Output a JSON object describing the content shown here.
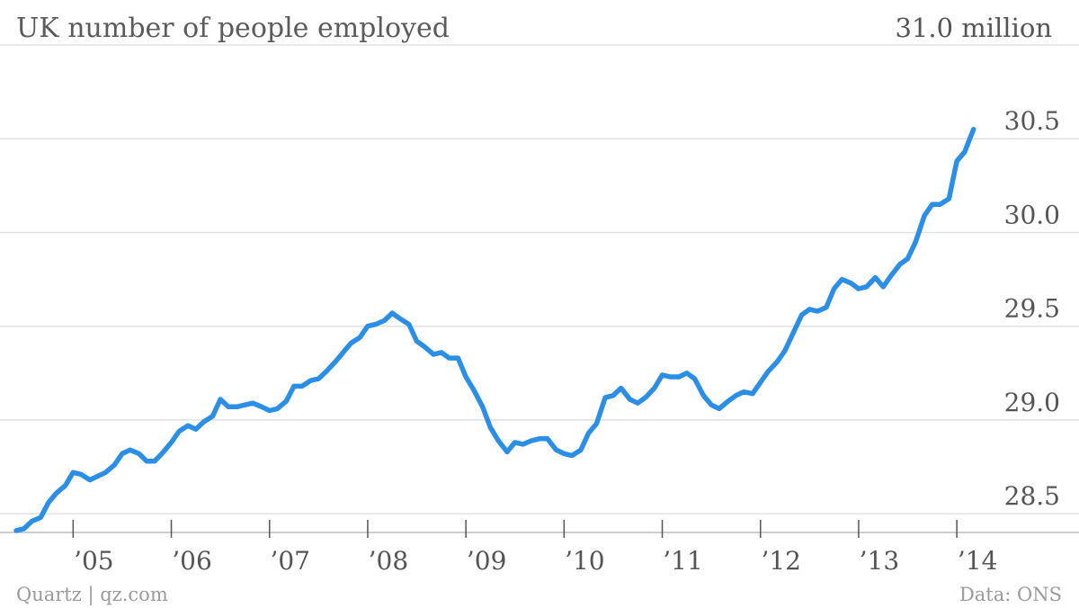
{
  "chart_data": {
    "type": "line",
    "title": "UK number of people employed",
    "unit_label": "31.0 million",
    "source": "Data: ONS",
    "credit": "Quartz | qz.com",
    "xlim": [
      2004.42,
      2014.42
    ],
    "ylim": [
      28.4,
      31.0
    ],
    "y_ticks": [
      {
        "value": 28.5,
        "label": "28.5"
      },
      {
        "value": 29.0,
        "label": "29.0"
      },
      {
        "value": 29.5,
        "label": "29.5"
      },
      {
        "value": 30.0,
        "label": "30.0"
      },
      {
        "value": 30.5,
        "label": "30.5"
      }
    ],
    "x_ticks": [
      {
        "value": 2005,
        "label": "’05"
      },
      {
        "value": 2006,
        "label": "’06"
      },
      {
        "value": 2007,
        "label": "’07"
      },
      {
        "value": 2008,
        "label": "’08"
      },
      {
        "value": 2009,
        "label": "’09"
      },
      {
        "value": 2010,
        "label": "’10"
      },
      {
        "value": 2011,
        "label": "’11"
      },
      {
        "value": 2012,
        "label": "’12"
      },
      {
        "value": 2013,
        "label": "’13"
      },
      {
        "value": 2014,
        "label": "’14"
      }
    ],
    "grid": true,
    "legend": "none",
    "colors": {
      "line": "#2b8fe8",
      "grid": "#e1e1e1",
      "text": "#555555"
    },
    "series": [
      {
        "points": [
          [
            2004.42,
            28.41
          ],
          [
            2004.5,
            28.42
          ],
          [
            2004.58,
            28.46
          ],
          [
            2004.67,
            28.48
          ],
          [
            2004.75,
            28.56
          ],
          [
            2004.83,
            28.61
          ],
          [
            2004.92,
            28.65
          ],
          [
            2005.0,
            28.72
          ],
          [
            2005.08,
            28.71
          ],
          [
            2005.17,
            28.68
          ],
          [
            2005.25,
            28.7
          ],
          [
            2005.33,
            28.72
          ],
          [
            2005.42,
            28.76
          ],
          [
            2005.5,
            28.82
          ],
          [
            2005.58,
            28.84
          ],
          [
            2005.67,
            28.82
          ],
          [
            2005.75,
            28.78
          ],
          [
            2005.83,
            28.78
          ],
          [
            2005.92,
            28.83
          ],
          [
            2006.0,
            28.88
          ],
          [
            2006.08,
            28.94
          ],
          [
            2006.17,
            28.97
          ],
          [
            2006.25,
            28.95
          ],
          [
            2006.33,
            28.99
          ],
          [
            2006.42,
            29.02
          ],
          [
            2006.5,
            29.11
          ],
          [
            2006.58,
            29.07
          ],
          [
            2006.67,
            29.07
          ],
          [
            2006.75,
            29.08
          ],
          [
            2006.83,
            29.09
          ],
          [
            2006.92,
            29.07
          ],
          [
            2007.0,
            29.05
          ],
          [
            2007.08,
            29.06
          ],
          [
            2007.17,
            29.1
          ],
          [
            2007.25,
            29.18
          ],
          [
            2007.33,
            29.18
          ],
          [
            2007.42,
            29.21
          ],
          [
            2007.5,
            29.22
          ],
          [
            2007.58,
            29.26
          ],
          [
            2007.67,
            29.31
          ],
          [
            2007.75,
            29.36
          ],
          [
            2007.83,
            29.41
          ],
          [
            2007.92,
            29.44
          ],
          [
            2008.0,
            29.5
          ],
          [
            2008.08,
            29.51
          ],
          [
            2008.17,
            29.53
          ],
          [
            2008.25,
            29.57
          ],
          [
            2008.33,
            29.54
          ],
          [
            2008.42,
            29.51
          ],
          [
            2008.5,
            29.42
          ],
          [
            2008.58,
            29.39
          ],
          [
            2008.67,
            29.35
          ],
          [
            2008.75,
            29.36
          ],
          [
            2008.83,
            29.33
          ],
          [
            2008.92,
            29.33
          ],
          [
            2009.0,
            29.23
          ],
          [
            2009.08,
            29.16
          ],
          [
            2009.17,
            29.07
          ],
          [
            2009.25,
            28.96
          ],
          [
            2009.33,
            28.89
          ],
          [
            2009.42,
            28.83
          ],
          [
            2009.5,
            28.88
          ],
          [
            2009.58,
            28.87
          ],
          [
            2009.67,
            28.89
          ],
          [
            2009.75,
            28.9
          ],
          [
            2009.83,
            28.9
          ],
          [
            2009.92,
            28.84
          ],
          [
            2010.0,
            28.82
          ],
          [
            2010.08,
            28.81
          ],
          [
            2010.17,
            28.84
          ],
          [
            2010.25,
            28.93
          ],
          [
            2010.33,
            28.98
          ],
          [
            2010.42,
            29.12
          ],
          [
            2010.5,
            29.13
          ],
          [
            2010.58,
            29.17
          ],
          [
            2010.67,
            29.11
          ],
          [
            2010.75,
            29.09
          ],
          [
            2010.83,
            29.12
          ],
          [
            2010.92,
            29.17
          ],
          [
            2011.0,
            29.24
          ],
          [
            2011.08,
            29.23
          ],
          [
            2011.17,
            29.23
          ],
          [
            2011.25,
            29.25
          ],
          [
            2011.33,
            29.22
          ],
          [
            2011.42,
            29.13
          ],
          [
            2011.5,
            29.08
          ],
          [
            2011.58,
            29.06
          ],
          [
            2011.67,
            29.1
          ],
          [
            2011.75,
            29.13
          ],
          [
            2011.83,
            29.15
          ],
          [
            2011.92,
            29.14
          ],
          [
            2012.0,
            29.2
          ],
          [
            2012.08,
            29.26
          ],
          [
            2012.17,
            29.31
          ],
          [
            2012.25,
            29.37
          ],
          [
            2012.33,
            29.46
          ],
          [
            2012.42,
            29.56
          ],
          [
            2012.5,
            29.59
          ],
          [
            2012.58,
            29.58
          ],
          [
            2012.67,
            29.6
          ],
          [
            2012.75,
            29.7
          ],
          [
            2012.83,
            29.75
          ],
          [
            2012.92,
            29.73
          ],
          [
            2013.0,
            29.7
          ],
          [
            2013.08,
            29.71
          ],
          [
            2013.17,
            29.76
          ],
          [
            2013.25,
            29.71
          ],
          [
            2013.33,
            29.77
          ],
          [
            2013.42,
            29.83
          ],
          [
            2013.5,
            29.86
          ],
          [
            2013.58,
            29.95
          ],
          [
            2013.67,
            30.09
          ],
          [
            2013.75,
            30.15
          ],
          [
            2013.83,
            30.15
          ],
          [
            2013.92,
            30.18
          ],
          [
            2014.0,
            30.38
          ],
          [
            2014.08,
            30.43
          ],
          [
            2014.17,
            30.55
          ]
        ]
      }
    ]
  }
}
